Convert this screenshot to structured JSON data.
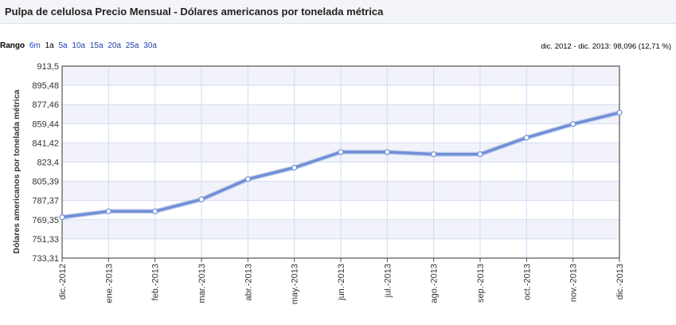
{
  "header": {
    "title": "Pulpa de celulosa Precio Mensual - Dólares americanos por tonelada métrica"
  },
  "range": {
    "label": "Rango",
    "options": [
      "6m",
      "1a",
      "5a",
      "10a",
      "15a",
      "20a",
      "25a",
      "30a"
    ],
    "active": "1a"
  },
  "summary": "dic. 2012 - dic. 2013: 98,096 (12,71 %)",
  "colors": {
    "line": "#6f8fd6",
    "point_fill": "#ffffff",
    "band": "#f2f2fa",
    "grid": "#d2ddf0"
  },
  "chart_data": {
    "type": "line",
    "title": "",
    "xlabel": "",
    "ylabel": "Dólares americanos por tonelada métrica",
    "categories": [
      "dic.-2012",
      "ene.-2013",
      "feb.-2013",
      "mar.-2013",
      "abr.-2013",
      "may.-2013",
      "jun.-2013",
      "jul.-2013",
      "ago.-2013",
      "sep.-2013",
      "oct.-2013",
      "nov.-2013",
      "dic.-2013"
    ],
    "values": [
      771.7,
      777.2,
      777.2,
      788.4,
      807.4,
      818.2,
      832.8,
      832.8,
      830.8,
      830.8,
      846.3,
      859.1,
      869.8
    ],
    "ylim": [
      733.31,
      913.5
    ],
    "yticks": [
      "913,5",
      "895,48",
      "877,46",
      "859,44",
      "841,42",
      "823,4",
      "805,39",
      "787,37",
      "769,35",
      "751,33",
      "733,31"
    ],
    "grid": true,
    "legend": "none"
  }
}
